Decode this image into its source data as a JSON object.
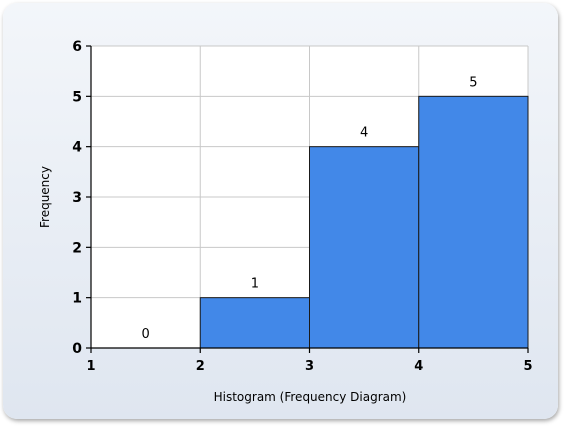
{
  "chart_data": {
    "type": "bar",
    "title": "",
    "xlabel": "Histogram (Frequency Diagram)",
    "ylabel": "Frequency",
    "bins": [
      {
        "from": 1,
        "to": 2,
        "value": 0,
        "label": "0"
      },
      {
        "from": 2,
        "to": 3,
        "value": 1,
        "label": "1"
      },
      {
        "from": 3,
        "to": 4,
        "value": 4,
        "label": "4"
      },
      {
        "from": 4,
        "to": 5,
        "value": 5,
        "label": "5"
      }
    ],
    "xlim": [
      1,
      5
    ],
    "ylim": [
      0,
      6
    ],
    "x_ticks": [
      "1",
      "2",
      "3",
      "4",
      "5"
    ],
    "y_ticks": [
      "0",
      "1",
      "2",
      "3",
      "4",
      "5",
      "6"
    ],
    "grid": true,
    "bar_color": "#4288e8",
    "legend": "none"
  }
}
